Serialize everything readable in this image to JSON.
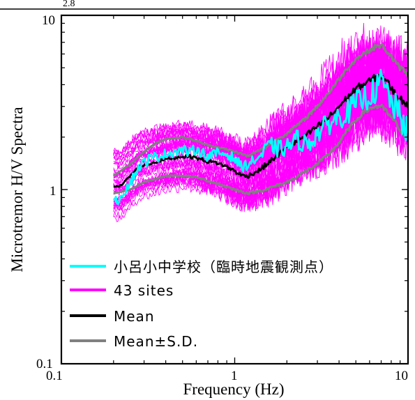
{
  "top_fragment": "2.8",
  "chart_data": {
    "type": "line",
    "xlabel": "Frequency (Hz)",
    "ylabel": "Microtremor H/V Spectra",
    "xscale": "log",
    "yscale": "log",
    "xlim": [
      0.1,
      10
    ],
    "ylim": [
      0.1,
      10
    ],
    "x_tick_labels": [
      "0.1",
      "1",
      "10"
    ],
    "y_tick_labels": [
      "0.1",
      "1",
      "10"
    ],
    "legend_position": "bottom-left",
    "series": [
      {
        "name": "小呂小中学校（臨時地震観測点）",
        "color": "#00ffff",
        "x": [
          0.2,
          0.22,
          0.25,
          0.28,
          0.32,
          0.36,
          0.4,
          0.45,
          0.5,
          0.55,
          0.6,
          0.7,
          0.8,
          0.9,
          1.0,
          1.1,
          1.2,
          1.4,
          1.6,
          1.8,
          2.0,
          2.3,
          2.6,
          3.0,
          3.5,
          4.0,
          4.5,
          5.0,
          5.5,
          6.0,
          6.5,
          7.0,
          7.5,
          8.0,
          8.5,
          9.0,
          9.5,
          10.0
        ],
        "y": [
          0.82,
          0.92,
          1.1,
          1.35,
          1.5,
          1.55,
          1.6,
          1.65,
          1.7,
          1.62,
          1.72,
          1.55,
          1.62,
          1.6,
          1.5,
          1.35,
          1.4,
          1.55,
          1.8,
          1.7,
          1.75,
          1.95,
          1.8,
          2.1,
          2.4,
          2.6,
          2.8,
          3.1,
          3.3,
          3.5,
          3.7,
          4.2,
          3.7,
          3.2,
          2.9,
          2.6,
          2.4,
          2.1
        ]
      },
      {
        "name": "43 sites",
        "color": "#ff00ff",
        "description_count": 43
      },
      {
        "name": "Mean",
        "color": "#000000",
        "x": [
          0.2,
          0.22,
          0.25,
          0.28,
          0.32,
          0.36,
          0.4,
          0.45,
          0.5,
          0.55,
          0.6,
          0.7,
          0.8,
          0.9,
          1.0,
          1.1,
          1.2,
          1.4,
          1.6,
          1.8,
          2.0,
          2.3,
          2.6,
          3.0,
          3.5,
          4.0,
          4.5,
          5.0,
          5.5,
          6.0,
          6.5,
          7.0,
          7.5,
          8.0,
          8.5,
          9.0,
          9.5,
          10.0
        ],
        "y": [
          1.05,
          1.05,
          1.2,
          1.35,
          1.4,
          1.45,
          1.5,
          1.52,
          1.55,
          1.55,
          1.52,
          1.45,
          1.42,
          1.35,
          1.28,
          1.2,
          1.2,
          1.3,
          1.45,
          1.6,
          1.75,
          1.9,
          2.05,
          2.3,
          2.6,
          3.0,
          3.4,
          3.8,
          4.0,
          4.2,
          4.4,
          4.5,
          4.2,
          3.8,
          3.5,
          3.3,
          3.2,
          3.1
        ]
      },
      {
        "name": "Mean±S.D.",
        "color": "#808080",
        "upper": {
          "x": [
            0.2,
            0.25,
            0.3,
            0.35,
            0.4,
            0.5,
            0.6,
            0.7,
            0.8,
            1.0,
            1.2,
            1.5,
            2.0,
            2.5,
            3.0,
            3.5,
            4.0,
            4.5,
            5.0,
            5.5,
            6.0,
            6.5,
            7.0,
            7.5,
            8.0,
            8.5,
            9.0,
            9.5,
            10.0
          ],
          "y": [
            1.2,
            1.4,
            1.65,
            1.85,
            1.95,
            2.0,
            1.9,
            1.8,
            1.75,
            1.65,
            1.55,
            1.75,
            2.1,
            2.5,
            3.0,
            3.6,
            4.3,
            5.0,
            5.6,
            6.0,
            6.3,
            6.6,
            6.7,
            6.3,
            5.8,
            5.3,
            5.0,
            4.8,
            4.6
          ]
        },
        "lower": {
          "x": [
            0.2,
            0.25,
            0.3,
            0.35,
            0.4,
            0.5,
            0.6,
            0.7,
            0.8,
            1.0,
            1.2,
            1.5,
            2.0,
            2.5,
            3.0,
            3.5,
            4.0,
            4.5,
            5.0,
            5.5,
            6.0,
            6.5,
            7.0,
            7.5,
            8.0,
            8.5,
            9.0,
            9.5,
            10.0
          ],
          "y": [
            0.95,
            1.0,
            1.1,
            1.15,
            1.2,
            1.2,
            1.18,
            1.12,
            1.08,
            1.0,
            0.95,
            1.0,
            1.1,
            1.25,
            1.4,
            1.6,
            1.85,
            2.2,
            2.5,
            2.75,
            2.9,
            3.0,
            3.0,
            2.8,
            2.6,
            2.4,
            2.2,
            2.0,
            1.9
          ]
        }
      }
    ]
  }
}
